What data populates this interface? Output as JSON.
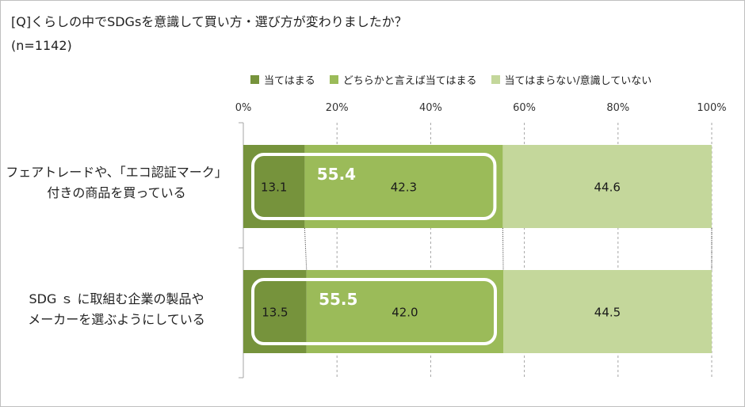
{
  "title": "[Q]くらしの中でSDGsを意識して買い方・選び方が変わりましたか？",
  "subtitle": "(n=1142)",
  "colors": {
    "series_1": "#76933c",
    "series_2": "#9bbb59",
    "series_3": "#c4d79b",
    "grid": "#a6a6a6",
    "highlight_box": "#ffffff"
  },
  "chart_data": {
    "type": "bar",
    "orientation": "horizontal",
    "stacked": "percent",
    "categories": [
      [
        "フェアトレードや、「エコ認証マーク」",
        "付きの商品を買っている"
      ],
      [
        "SDG ｓ に取組む企業の製品や",
        "メーカーを選ぶようにしている"
      ]
    ],
    "series": [
      {
        "name": "当てはまる",
        "values": [
          13.1,
          13.5
        ]
      },
      {
        "name": "どちらかと言えば当てはまる",
        "values": [
          42.3,
          42.0
        ]
      },
      {
        "name": "当てはまらない/意識していない",
        "values": [
          44.6,
          44.5
        ]
      }
    ],
    "highlight_totals": [
      "55.4",
      "55.5"
    ],
    "xlim": [
      0,
      100
    ],
    "xticks": [
      "0%",
      "20%",
      "40%",
      "60%",
      "80%",
      "100%"
    ],
    "xtick_values": [
      0,
      20,
      40,
      60,
      80,
      100
    ],
    "grid": true,
    "legend_position": "top"
  }
}
